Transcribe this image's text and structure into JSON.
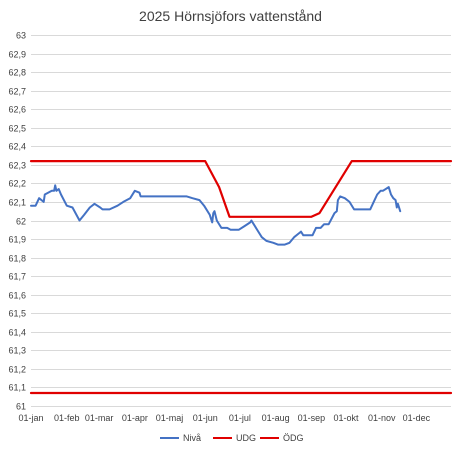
{
  "chart_data": {
    "type": "line",
    "title": "2025 Hörnsjöfors vattenstånd",
    "ylim": [
      61,
      63
    ],
    "y_ticks": [
      "61",
      "61,1",
      "61,2",
      "61,3",
      "61,4",
      "61,5",
      "61,6",
      "61,7",
      "61,8",
      "61,9",
      "62",
      "62,1",
      "62,2",
      "62,3",
      "62,4",
      "62,5",
      "62,6",
      "62,7",
      "62,8",
      "62,9",
      "63"
    ],
    "x_ticks": [
      "01-jan",
      "01-feb",
      "01-mar",
      "01-apr",
      "01-maj",
      "01-jun",
      "01-jul",
      "01-aug",
      "01-sep",
      "01-okt",
      "01-nov",
      "01-dec"
    ],
    "x_tick_days": [
      0,
      31,
      59,
      90,
      120,
      151,
      181,
      212,
      243,
      273,
      304,
      334
    ],
    "x_range_days": [
      0,
      364
    ],
    "grid": true,
    "legend_position": "bottom",
    "series": [
      {
        "name": "Nivå",
        "color": "#4472c4",
        "points": [
          [
            0,
            62.08
          ],
          [
            4,
            62.08
          ],
          [
            7,
            62.12
          ],
          [
            11,
            62.1
          ],
          [
            12,
            62.14
          ],
          [
            18,
            62.16
          ],
          [
            20,
            62.16
          ],
          [
            21,
            62.19
          ],
          [
            22,
            62.16
          ],
          [
            24,
            62.17
          ],
          [
            26,
            62.14
          ],
          [
            31,
            62.08
          ],
          [
            36,
            62.07
          ],
          [
            42,
            62.0
          ],
          [
            46,
            62.03
          ],
          [
            51,
            62.07
          ],
          [
            55,
            62.09
          ],
          [
            60,
            62.07
          ],
          [
            62,
            62.06
          ],
          [
            68,
            62.06
          ],
          [
            75,
            62.08
          ],
          [
            80,
            62.1
          ],
          [
            86,
            62.12
          ],
          [
            90,
            62.16
          ],
          [
            94,
            62.15
          ],
          [
            95,
            62.13
          ],
          [
            100,
            62.13
          ],
          [
            110,
            62.13
          ],
          [
            125,
            62.13
          ],
          [
            135,
            62.13
          ],
          [
            140,
            62.12
          ],
          [
            146,
            62.11
          ],
          [
            150,
            62.08
          ],
          [
            155,
            62.03
          ],
          [
            157,
            61.99
          ],
          [
            158,
            62.04
          ],
          [
            159,
            62.05
          ],
          [
            161,
            62.0
          ],
          [
            165,
            61.96
          ],
          [
            170,
            61.96
          ],
          [
            173,
            61.95
          ],
          [
            180,
            61.95
          ],
          [
            185,
            61.97
          ],
          [
            190,
            61.99
          ],
          [
            191,
            62.0
          ],
          [
            193,
            61.98
          ],
          [
            197,
            61.94
          ],
          [
            200,
            61.91
          ],
          [
            204,
            61.89
          ],
          [
            210,
            61.88
          ],
          [
            214,
            61.87
          ],
          [
            220,
            61.87
          ],
          [
            224,
            61.88
          ],
          [
            228,
            61.91
          ],
          [
            232,
            61.93
          ],
          [
            234,
            61.94
          ],
          [
            236,
            61.92
          ],
          [
            244,
            61.92
          ],
          [
            247,
            61.96
          ],
          [
            251,
            61.96
          ],
          [
            254,
            61.98
          ],
          [
            258,
            61.98
          ],
          [
            263,
            62.04
          ],
          [
            265,
            62.05
          ],
          [
            266,
            62.11
          ],
          [
            268,
            62.13
          ],
          [
            272,
            62.12
          ],
          [
            276,
            62.1
          ],
          [
            280,
            62.06
          ],
          [
            290,
            62.06
          ],
          [
            294,
            62.06
          ],
          [
            297,
            62.1
          ],
          [
            300,
            62.14
          ],
          [
            303,
            62.16
          ],
          [
            305,
            62.16
          ],
          [
            310,
            62.18
          ],
          [
            312,
            62.14
          ],
          [
            314,
            62.12
          ],
          [
            316,
            62.11
          ],
          [
            317,
            62.07
          ],
          [
            318,
            62.09
          ],
          [
            320,
            62.05
          ]
        ]
      },
      {
        "name": "UDG",
        "color": "#e00000",
        "points": [
          [
            0,
            62.32
          ],
          [
            151,
            62.32
          ],
          [
            163,
            62.18
          ],
          [
            172,
            62.02
          ],
          [
            243,
            62.02
          ],
          [
            250,
            62.04
          ],
          [
            278,
            62.32
          ],
          [
            364,
            62.32
          ]
        ]
      },
      {
        "name": "ÖDG",
        "color": "#e00000",
        "points": [
          [
            0,
            61.07
          ],
          [
            364,
            61.07
          ]
        ]
      }
    ]
  }
}
